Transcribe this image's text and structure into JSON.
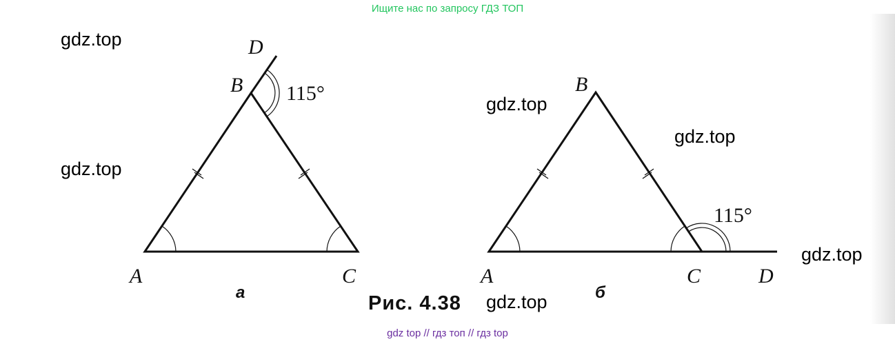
{
  "header": {
    "search_hint": "Ищите нас по запросу ГДЗ ТОП"
  },
  "watermarks": [
    "gdz.top",
    "gdz.top",
    "gdz.top",
    "gdz.top",
    "gdz.top",
    "gdz.top"
  ],
  "figure": {
    "caption": "Рис. 4.38",
    "panel_a": {
      "label": "а",
      "points": {
        "A": "A",
        "B": "B",
        "C": "C",
        "D": "D"
      },
      "angle": "115°"
    },
    "panel_b": {
      "label": "б",
      "points": {
        "A": "A",
        "B": "B",
        "C": "C",
        "D": "D"
      },
      "angle": "115°"
    }
  },
  "footer": {
    "links": "gdz top  //  гдз топ  //  гдз top"
  }
}
